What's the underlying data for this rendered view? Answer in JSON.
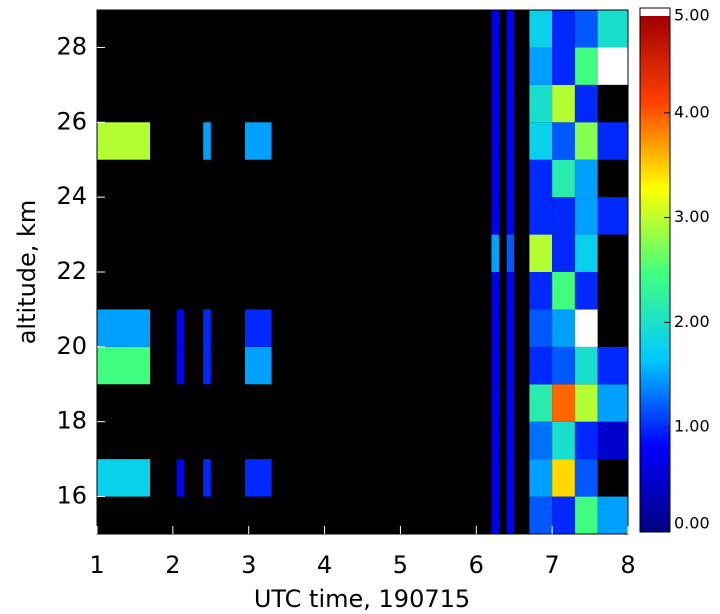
{
  "chart_data": {
    "type": "heatmap",
    "xlabel": "UTC time, 190715",
    "ylabel": "altitude, km",
    "xlim": [
      1,
      8
    ],
    "xticks": [
      1,
      2,
      3,
      4,
      5,
      6,
      7,
      8
    ],
    "ylim": [
      15,
      29
    ],
    "yticks": [
      16,
      18,
      20,
      22,
      24,
      26,
      28
    ],
    "xbins": [
      1,
      1.7,
      2.05,
      2.15,
      2.4,
      2.5,
      2.95,
      3.3,
      6.2,
      6.3,
      6.4,
      6.5,
      6.7,
      7.0,
      7.3,
      7.6,
      8
    ],
    "ybins": [
      15,
      16,
      17,
      18,
      19,
      20,
      21,
      22,
      23,
      24,
      25,
      26,
      27,
      28,
      29
    ],
    "z": [
      [
        null,
        null,
        null,
        null,
        null,
        null,
        null,
        null,
        0.7,
        null,
        0.8,
        null,
        1.2,
        1.0,
        2.5,
        1.5
      ],
      [
        1.8,
        null,
        0.8,
        null,
        1.0,
        null,
        1.0,
        null,
        0.7,
        null,
        0.8,
        null,
        1.5,
        3.5,
        1.2,
        null
      ],
      [
        null,
        null,
        null,
        null,
        null,
        null,
        null,
        null,
        0.7,
        null,
        0.8,
        null,
        1.3,
        2.0,
        1.0,
        0.5
      ],
      [
        null,
        null,
        null,
        null,
        null,
        null,
        null,
        null,
        0.7,
        null,
        0.8,
        null,
        2.2,
        4.0,
        3.0,
        1.5
      ],
      [
        2.5,
        null,
        0.8,
        null,
        1.0,
        null,
        1.5,
        null,
        0.7,
        null,
        0.8,
        null,
        1.0,
        1.2,
        2.0,
        1.0
      ],
      [
        1.5,
        null,
        0.8,
        null,
        1.0,
        null,
        1.0,
        null,
        0.7,
        null,
        0.8,
        null,
        1.2,
        1.5,
        5,
        null
      ],
      [
        null,
        null,
        null,
        null,
        null,
        null,
        null,
        null,
        0.7,
        null,
        0.8,
        null,
        1.0,
        2.5,
        1.0,
        null
      ],
      [
        null,
        null,
        null,
        null,
        null,
        null,
        null,
        null,
        1.5,
        null,
        1.2,
        null,
        3.0,
        1.0,
        1.8,
        null
      ],
      [
        null,
        null,
        null,
        null,
        null,
        null,
        null,
        null,
        0.7,
        null,
        0.8,
        null,
        1.0,
        1.0,
        1.5,
        1.0
      ],
      [
        null,
        null,
        null,
        null,
        null,
        null,
        null,
        null,
        0.7,
        null,
        0.8,
        null,
        1.0,
        2.2,
        1.5,
        null
      ],
      [
        3.0,
        null,
        null,
        null,
        1.5,
        null,
        1.5,
        null,
        0.7,
        null,
        0.8,
        null,
        1.8,
        1.2,
        2.8,
        1.0
      ],
      [
        null,
        null,
        null,
        null,
        null,
        null,
        null,
        null,
        0.7,
        null,
        0.8,
        null,
        2.0,
        3.0,
        1.0,
        null
      ],
      [
        null,
        null,
        null,
        null,
        null,
        null,
        null,
        null,
        0.7,
        null,
        0.8,
        null,
        1.5,
        1.0,
        2.5,
        5
      ],
      [
        null,
        null,
        null,
        null,
        null,
        null,
        null,
        null,
        0.7,
        null,
        0.8,
        null,
        1.8,
        1.0,
        1.2,
        2.0
      ]
    ],
    "background": "#000000",
    "clim": [
      0,
      5
    ],
    "colormap": [
      "#000080",
      "#0000ff",
      "#00c8ff",
      "#40ff80",
      "#ffff00",
      "#ff4000",
      "#a00000"
    ],
    "over_color": "#ffffff",
    "cticks": [
      {
        "value": 0,
        "label": "0.00"
      },
      {
        "value": 1,
        "label": "1.00"
      },
      {
        "value": 2,
        "label": "2.00"
      },
      {
        "value": 3,
        "label": "3.00"
      },
      {
        "value": 4,
        "label": "4.00"
      },
      {
        "value": 5,
        "label": "5.00"
      }
    ]
  }
}
